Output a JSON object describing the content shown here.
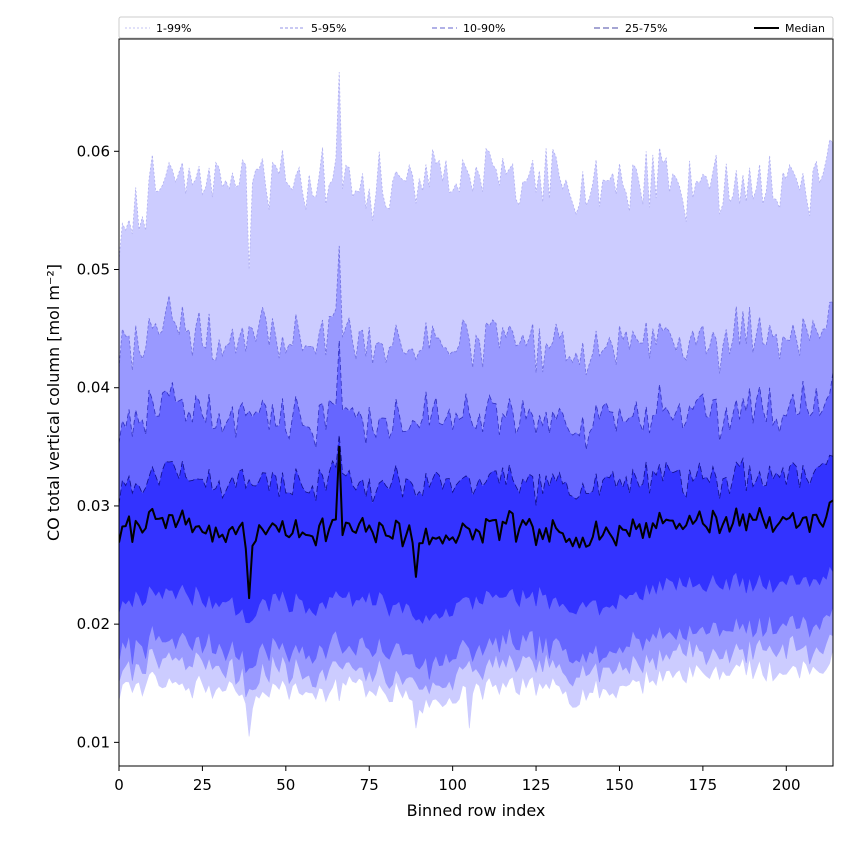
{
  "chart_data": {
    "type": "area",
    "xlabel": "Binned row index",
    "ylabel": "CO total vertical column [mol m⁻²]",
    "xlim": [
      0,
      214
    ],
    "ylim": [
      0.008,
      0.0695
    ],
    "xticks": [
      0,
      25,
      50,
      75,
      100,
      125,
      150,
      175,
      200
    ],
    "xtick_labels": [
      "0",
      "25",
      "50",
      "75",
      "100",
      "125",
      "150",
      "175",
      "200"
    ],
    "yticks": [
      0.01,
      0.02,
      0.03,
      0.04,
      0.05,
      0.06
    ],
    "ytick_labels": [
      "0.01",
      "0.02",
      "0.03",
      "0.04",
      "0.05",
      "0.06"
    ],
    "legend_position": "top (full width, above plot)",
    "bands": [
      {
        "name": "1-99%",
        "fill": "#ccccff",
        "edge": "#b0b0f0",
        "dash": "2,2",
        "upper_anchor": [
          0.0525,
          0.0545,
          0.057,
          0.0575,
          0.058,
          0.058,
          0.058,
          0.0575,
          0.059,
          0.057,
          0.0585,
          0.0575,
          0.0578,
          0.058,
          0.0576,
          0.056,
          0.0568,
          0.0575,
          0.0572,
          0.0585,
          0.058,
          0.0578,
          0.0575,
          0.0585,
          0.0575,
          0.0575,
          0.057,
          0.0575,
          0.0578,
          0.0568,
          0.0575,
          0.0575,
          0.0572,
          0.0585,
          0.0578,
          0.0565,
          0.0575,
          0.0578,
          0.057,
          0.0578,
          0.0575,
          0.0575,
          0.0575,
          0.058,
          0.0585
        ],
        "lower_anchor": [
          0.0142,
          0.0148,
          0.0152,
          0.015,
          0.0148,
          0.0148,
          0.0145,
          0.015,
          0.013,
          0.0148,
          0.0148,
          0.0145,
          0.0142,
          0.0145,
          0.0148,
          0.0145,
          0.014,
          0.0142,
          0.0138,
          0.0128,
          0.0135,
          0.0142,
          0.0145,
          0.0148,
          0.0148,
          0.0145,
          0.0148,
          0.0142,
          0.014,
          0.0145,
          0.0142,
          0.0148,
          0.015,
          0.0155,
          0.0158,
          0.016,
          0.016,
          0.0158,
          0.0162,
          0.016,
          0.016,
          0.0162,
          0.0165,
          0.016,
          0.0168
        ]
      },
      {
        "name": "5-95%",
        "fill": "#9999ff",
        "edge": "#7070e0",
        "dash": "3,2",
        "upper_anchor": [
          0.043,
          0.044,
          0.0445,
          0.046,
          0.045,
          0.0445,
          0.0435,
          0.0445,
          0.044,
          0.046,
          0.0435,
          0.044,
          0.0435,
          0.045,
          0.0445,
          0.0425,
          0.0435,
          0.0445,
          0.0425,
          0.0445,
          0.044,
          0.0445,
          0.043,
          0.0455,
          0.044,
          0.0435,
          0.043,
          0.0435,
          0.044,
          0.0425,
          0.044,
          0.0445,
          0.044,
          0.045,
          0.0445,
          0.0435,
          0.0445,
          0.0435,
          0.045,
          0.0445,
          0.0445,
          0.0445,
          0.0445,
          0.045,
          0.0465
        ],
        "lower_anchor": [
          0.0158,
          0.0162,
          0.0168,
          0.0168,
          0.0168,
          0.0166,
          0.0162,
          0.0162,
          0.0145,
          0.0162,
          0.0162,
          0.016,
          0.0158,
          0.0165,
          0.0162,
          0.016,
          0.016,
          0.0158,
          0.0155,
          0.0145,
          0.015,
          0.016,
          0.016,
          0.0165,
          0.0165,
          0.0162,
          0.0165,
          0.016,
          0.0158,
          0.016,
          0.0158,
          0.0165,
          0.0168,
          0.0172,
          0.0175,
          0.0178,
          0.0175,
          0.0175,
          0.0178,
          0.0178,
          0.0178,
          0.018,
          0.018,
          0.018,
          0.0185
        ]
      },
      {
        "name": "10-90%",
        "fill": "#6666ff",
        "edge": "#3030c0",
        "dash": "5,3",
        "upper_anchor": [
          0.0365,
          0.0375,
          0.038,
          0.039,
          0.0385,
          0.038,
          0.0375,
          0.038,
          0.0375,
          0.0385,
          0.0368,
          0.0375,
          0.037,
          0.0385,
          0.038,
          0.0365,
          0.037,
          0.038,
          0.0365,
          0.038,
          0.0375,
          0.038,
          0.0368,
          0.0385,
          0.0375,
          0.0372,
          0.037,
          0.0372,
          0.0378,
          0.0365,
          0.0378,
          0.0378,
          0.0375,
          0.0385,
          0.0385,
          0.0375,
          0.0385,
          0.0375,
          0.0385,
          0.0385,
          0.038,
          0.0385,
          0.0385,
          0.039,
          0.0395
        ],
        "lower_anchor": [
          0.0175,
          0.018,
          0.0186,
          0.0186,
          0.0186,
          0.0184,
          0.018,
          0.018,
          0.0162,
          0.018,
          0.018,
          0.0178,
          0.0176,
          0.0184,
          0.018,
          0.0178,
          0.0178,
          0.0176,
          0.0172,
          0.0162,
          0.0168,
          0.0178,
          0.0178,
          0.0184,
          0.0184,
          0.018,
          0.0184,
          0.0178,
          0.0176,
          0.0178,
          0.0176,
          0.0184,
          0.0186,
          0.019,
          0.0194,
          0.0198,
          0.0194,
          0.0194,
          0.0198,
          0.0198,
          0.0198,
          0.02,
          0.02,
          0.02,
          0.0205
        ]
      },
      {
        "name": "25-75%",
        "fill": "#3333ff",
        "edge": "#10108a",
        "dash": "6,3",
        "upper_anchor": [
          0.031,
          0.0318,
          0.0322,
          0.033,
          0.0328,
          0.0322,
          0.032,
          0.0322,
          0.0322,
          0.0328,
          0.0315,
          0.032,
          0.0316,
          0.0328,
          0.0325,
          0.0312,
          0.0316,
          0.0325,
          0.0312,
          0.0325,
          0.032,
          0.0325,
          0.0314,
          0.0328,
          0.032,
          0.0318,
          0.0316,
          0.0318,
          0.0322,
          0.0312,
          0.0322,
          0.0322,
          0.032,
          0.0328,
          0.0328,
          0.032,
          0.0328,
          0.032,
          0.0328,
          0.0328,
          0.0325,
          0.0328,
          0.0328,
          0.0332,
          0.0335
        ],
        "lower_anchor": [
          0.0215,
          0.022,
          0.0226,
          0.0226,
          0.0226,
          0.0224,
          0.022,
          0.022,
          0.02,
          0.022,
          0.022,
          0.0218,
          0.0216,
          0.0224,
          0.022,
          0.0218,
          0.0218,
          0.0216,
          0.0212,
          0.0205,
          0.0208,
          0.0218,
          0.0218,
          0.0224,
          0.0224,
          0.022,
          0.0224,
          0.0218,
          0.0216,
          0.0218,
          0.0216,
          0.0224,
          0.0226,
          0.023,
          0.0234,
          0.0236,
          0.0234,
          0.0234,
          0.0236,
          0.0236,
          0.0236,
          0.0238,
          0.0238,
          0.0238,
          0.0242
        ]
      }
    ],
    "series": [
      {
        "name": "Median",
        "color": "#000000",
        "values_anchor": [
          0.0275,
          0.028,
          0.0285,
          0.0285,
          0.0285,
          0.0282,
          0.028,
          0.028,
          0.027,
          0.0283,
          0.028,
          0.0278,
          0.0276,
          0.0284,
          0.028,
          0.0278,
          0.0278,
          0.0278,
          0.0274,
          0.0272,
          0.0272,
          0.0278,
          0.0276,
          0.0284,
          0.0282,
          0.0278,
          0.028,
          0.0276,
          0.0276,
          0.0274,
          0.0276,
          0.028,
          0.0282,
          0.0286,
          0.0288,
          0.0288,
          0.0286,
          0.0286,
          0.0288,
          0.0288,
          0.0288,
          0.0288,
          0.0288,
          0.0288,
          0.0292
        ]
      }
    ],
    "spikes": [
      {
        "x": 39,
        "upper99": 0.05,
        "lower1": 0.0105,
        "median": 0.0222
      },
      {
        "x": 66,
        "upper99": 0.0667,
        "upper95": 0.052,
        "median": 0.035,
        "lower1": 0.0135
      },
      {
        "x": 89,
        "lower1": 0.0112,
        "median": 0.024
      },
      {
        "x": 105,
        "lower1": 0.0112
      }
    ]
  }
}
